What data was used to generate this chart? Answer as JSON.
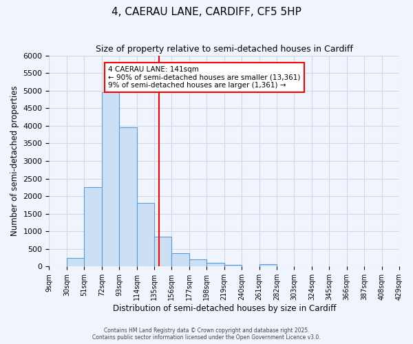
{
  "title": "4, CAERAU LANE, CARDIFF, CF5 5HP",
  "subtitle": "Size of property relative to semi-detached houses in Cardiff",
  "xlabel": "Distribution of semi-detached houses by size in Cardiff",
  "ylabel": "Number of semi-detached properties",
  "bin_labels": [
    "9sqm",
    "30sqm",
    "51sqm",
    "72sqm",
    "93sqm",
    "114sqm",
    "135sqm",
    "156sqm",
    "177sqm",
    "198sqm",
    "219sqm",
    "240sqm",
    "261sqm",
    "282sqm",
    "303sqm",
    "324sqm",
    "345sqm",
    "366sqm",
    "387sqm",
    "408sqm",
    "429sqm"
  ],
  "bin_edges": [
    9,
    30,
    51,
    72,
    93,
    114,
    135,
    156,
    177,
    198,
    219,
    240,
    261,
    282,
    303,
    324,
    345,
    366,
    387,
    408,
    429
  ],
  "bar_values": [
    0,
    250,
    2250,
    4950,
    3950,
    1800,
    850,
    375,
    210,
    100,
    55,
    0,
    60,
    0,
    0,
    0,
    0,
    0,
    0,
    0
  ],
  "bar_color": "#cce0f5",
  "bar_edge_color": "#5b9bd5",
  "property_line_x": 141,
  "property_line_color": "red",
  "annotation_title": "4 CAERAU LANE: 141sqm",
  "annotation_line1": "← 90% of semi-detached houses are smaller (13,361)",
  "annotation_line2": "9% of semi-detached houses are larger (1,361) →",
  "annotation_box_color": "white",
  "annotation_box_edge_color": "red",
  "ylim": [
    0,
    6000
  ],
  "yticks": [
    0,
    500,
    1000,
    1500,
    2000,
    2500,
    3000,
    3500,
    4000,
    4500,
    5000,
    5500,
    6000
  ],
  "grid_color": "#d0d8e8",
  "background_color": "#f0f4fc",
  "footer_line1": "Contains HM Land Registry data © Crown copyright and database right 2025.",
  "footer_line2": "Contains public sector information licensed under the Open Government Licence v3.0."
}
